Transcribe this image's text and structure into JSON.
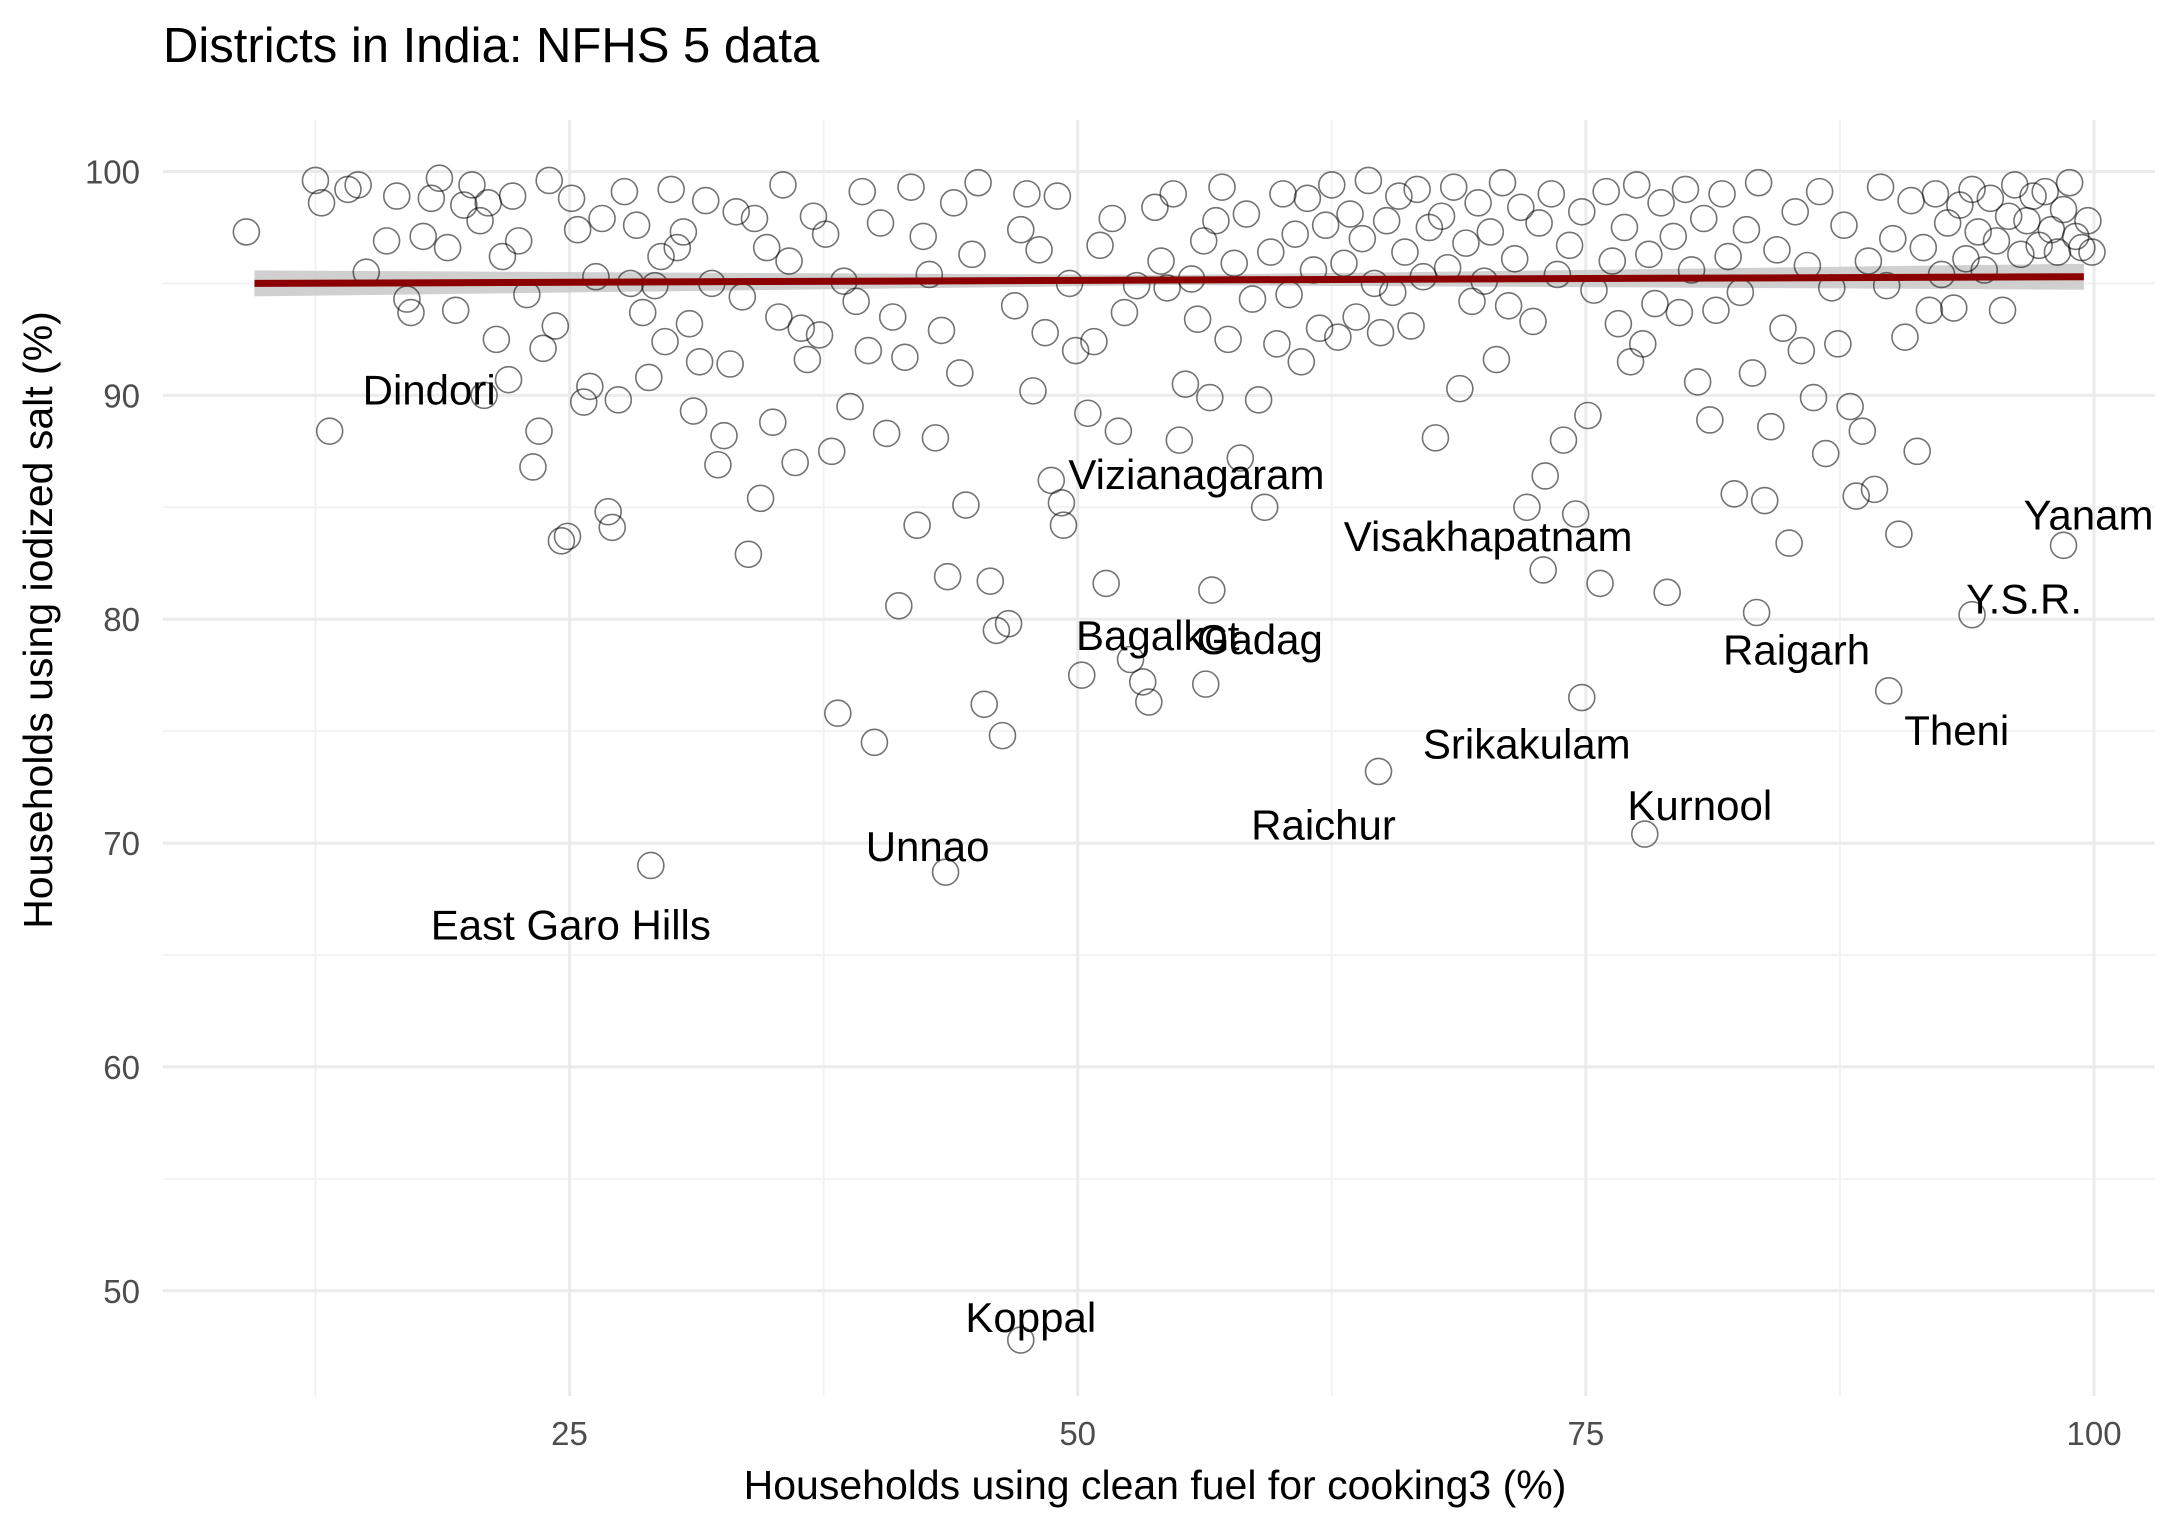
{
  "chart_data": {
    "type": "scatter",
    "title": "Districts in India: NFHS 5 data",
    "xlabel": "Households using clean fuel for cooking3 (%)",
    "ylabel": "Households using iodized salt (%)",
    "xlim": [
      5,
      103
    ],
    "ylim": [
      45.3,
      102.3
    ],
    "x_ticks": [
      25,
      50,
      75,
      100
    ],
    "y_ticks": [
      50,
      60,
      70,
      80,
      90,
      100
    ],
    "grid": true,
    "point_style": "hollow circle",
    "trend_line": {
      "type": "linear fit with confidence band",
      "color": "#8b0000",
      "band_color": "#c8c8c8",
      "points": [
        [
          9.5,
          95.0
        ],
        [
          99.5,
          95.3
        ]
      ]
    },
    "labeled_points": [
      {
        "label": "Dindori",
        "x": 20.8,
        "y": 90.0
      },
      {
        "label": "East Garo Hills",
        "x": 29.0,
        "y": 69.0
      },
      {
        "label": "Unnao",
        "x": 43.5,
        "y": 68.7
      },
      {
        "label": "Koppal",
        "x": 47.2,
        "y": 47.8
      },
      {
        "label": "Vizianagaram",
        "x": 49.2,
        "y": 85.2
      },
      {
        "label": "Bagalkot",
        "x": 56.3,
        "y": 77.1
      },
      {
        "label": "Gadag",
        "x": 56.6,
        "y": 81.3
      },
      {
        "label": "Raichur",
        "x": 64.8,
        "y": 73.2
      },
      {
        "label": "Visakhapatnam",
        "x": 72.9,
        "y": 82.2
      },
      {
        "label": "Srikakulam",
        "x": 74.8,
        "y": 76.5
      },
      {
        "label": "Kurnool",
        "x": 77.9,
        "y": 70.4
      },
      {
        "label": "Raigarh",
        "x": 83.4,
        "y": 80.3
      },
      {
        "label": "Theni",
        "x": 89.9,
        "y": 76.8
      },
      {
        "label": "Y.S.R.",
        "x": 94.0,
        "y": 80.2
      },
      {
        "label": "Yanam",
        "x": 98.5,
        "y": 83.3
      }
    ],
    "other_points": [
      [
        9.1,
        97.3
      ],
      [
        12.5,
        99.6
      ],
      [
        12.8,
        98.6
      ],
      [
        13.2,
        88.4
      ],
      [
        14.1,
        99.2
      ],
      [
        14.6,
        99.4
      ],
      [
        15.0,
        95.5
      ],
      [
        16.0,
        96.9
      ],
      [
        16.5,
        98.9
      ],
      [
        17.0,
        94.3
      ],
      [
        17.2,
        93.7
      ],
      [
        17.8,
        97.1
      ],
      [
        18.2,
        98.8
      ],
      [
        18.6,
        99.7
      ],
      [
        19.0,
        96.6
      ],
      [
        19.4,
        93.8
      ],
      [
        19.8,
        98.5
      ],
      [
        20.2,
        99.4
      ],
      [
        20.6,
        97.8
      ],
      [
        21.0,
        98.6
      ],
      [
        21.4,
        92.5
      ],
      [
        21.7,
        96.2
      ],
      [
        22.0,
        90.7
      ],
      [
        22.2,
        98.9
      ],
      [
        22.5,
        96.9
      ],
      [
        22.9,
        94.5
      ],
      [
        23.2,
        86.8
      ],
      [
        23.5,
        88.4
      ],
      [
        23.7,
        92.1
      ],
      [
        24.0,
        99.6
      ],
      [
        24.3,
        93.1
      ],
      [
        24.6,
        83.5
      ],
      [
        24.9,
        83.7
      ],
      [
        25.1,
        98.8
      ],
      [
        25.4,
        97.4
      ],
      [
        25.7,
        89.7
      ],
      [
        26.0,
        90.4
      ],
      [
        26.3,
        95.3
      ],
      [
        26.6,
        97.9
      ],
      [
        26.9,
        84.8
      ],
      [
        27.1,
        84.1
      ],
      [
        27.4,
        89.8
      ],
      [
        27.7,
        99.1
      ],
      [
        28.0,
        95.0
      ],
      [
        28.3,
        97.6
      ],
      [
        28.6,
        93.7
      ],
      [
        28.9,
        90.8
      ],
      [
        29.2,
        94.9
      ],
      [
        29.5,
        96.2
      ],
      [
        29.7,
        92.4
      ],
      [
        30.0,
        99.2
      ],
      [
        30.3,
        96.6
      ],
      [
        30.6,
        97.3
      ],
      [
        30.9,
        93.2
      ],
      [
        31.1,
        89.3
      ],
      [
        31.4,
        91.5
      ],
      [
        31.7,
        98.7
      ],
      [
        32.0,
        95.0
      ],
      [
        32.3,
        86.9
      ],
      [
        32.6,
        88.2
      ],
      [
        32.9,
        91.4
      ],
      [
        33.2,
        98.2
      ],
      [
        33.5,
        94.4
      ],
      [
        33.8,
        82.9
      ],
      [
        34.1,
        97.9
      ],
      [
        34.4,
        85.4
      ],
      [
        34.7,
        96.6
      ],
      [
        35.0,
        88.8
      ],
      [
        35.3,
        93.5
      ],
      [
        35.5,
        99.4
      ],
      [
        35.8,
        96.0
      ],
      [
        36.1,
        87.0
      ],
      [
        36.4,
        93.0
      ],
      [
        36.7,
        91.6
      ],
      [
        37.0,
        98.0
      ],
      [
        37.3,
        92.7
      ],
      [
        37.6,
        97.2
      ],
      [
        37.9,
        87.5
      ],
      [
        38.2,
        75.8
      ],
      [
        38.5,
        95.1
      ],
      [
        38.8,
        89.5
      ],
      [
        39.1,
        94.2
      ],
      [
        39.4,
        99.1
      ],
      [
        39.7,
        92.0
      ],
      [
        40.0,
        74.5
      ],
      [
        40.3,
        97.7
      ],
      [
        40.6,
        88.3
      ],
      [
        40.9,
        93.5
      ],
      [
        41.2,
        80.6
      ],
      [
        41.5,
        91.7
      ],
      [
        41.8,
        99.3
      ],
      [
        42.1,
        84.2
      ],
      [
        42.4,
        97.1
      ],
      [
        42.7,
        95.4
      ],
      [
        43.0,
        88.1
      ],
      [
        43.3,
        92.9
      ],
      [
        43.6,
        81.9
      ],
      [
        43.9,
        98.6
      ],
      [
        44.2,
        91.0
      ],
      [
        44.5,
        85.1
      ],
      [
        44.8,
        96.3
      ],
      [
        45.1,
        99.5
      ],
      [
        45.4,
        76.2
      ],
      [
        45.7,
        81.7
      ],
      [
        46.0,
        79.5
      ],
      [
        46.3,
        74.8
      ],
      [
        46.6,
        79.8
      ],
      [
        46.9,
        94.0
      ],
      [
        47.2,
        97.4
      ],
      [
        47.5,
        99.0
      ],
      [
        47.8,
        90.2
      ],
      [
        48.1,
        96.5
      ],
      [
        48.4,
        92.8
      ],
      [
        48.7,
        86.2
      ],
      [
        49.0,
        98.9
      ],
      [
        49.3,
        84.2
      ],
      [
        49.6,
        95.0
      ],
      [
        49.9,
        92.0
      ],
      [
        50.2,
        77.5
      ],
      [
        50.5,
        89.2
      ],
      [
        50.8,
        92.4
      ],
      [
        51.1,
        96.7
      ],
      [
        51.4,
        81.6
      ],
      [
        51.7,
        97.9
      ],
      [
        52.0,
        88.4
      ],
      [
        52.3,
        93.7
      ],
      [
        52.6,
        78.2
      ],
      [
        52.9,
        94.9
      ],
      [
        53.2,
        77.2
      ],
      [
        53.5,
        76.3
      ],
      [
        53.8,
        98.4
      ],
      [
        54.1,
        96.0
      ],
      [
        54.4,
        94.8
      ],
      [
        54.7,
        99.0
      ],
      [
        55.0,
        88.0
      ],
      [
        55.3,
        90.5
      ],
      [
        55.6,
        95.2
      ],
      [
        55.9,
        93.4
      ],
      [
        56.2,
        96.9
      ],
      [
        56.5,
        89.9
      ],
      [
        56.8,
        97.8
      ],
      [
        57.1,
        99.3
      ],
      [
        57.4,
        92.5
      ],
      [
        57.7,
        95.9
      ],
      [
        58.0,
        87.2
      ],
      [
        58.3,
        98.1
      ],
      [
        58.6,
        94.3
      ],
      [
        58.9,
        89.8
      ],
      [
        59.2,
        85.0
      ],
      [
        59.5,
        96.4
      ],
      [
        59.8,
        92.3
      ],
      [
        60.1,
        99.0
      ],
      [
        60.4,
        94.5
      ],
      [
        60.7,
        97.2
      ],
      [
        61.0,
        91.5
      ],
      [
        61.3,
        98.8
      ],
      [
        61.6,
        95.6
      ],
      [
        61.9,
        93.0
      ],
      [
        62.2,
        97.6
      ],
      [
        62.5,
        99.4
      ],
      [
        62.8,
        92.6
      ],
      [
        63.1,
        95.9
      ],
      [
        63.4,
        98.1
      ],
      [
        63.7,
        93.5
      ],
      [
        64.0,
        97.0
      ],
      [
        64.3,
        99.6
      ],
      [
        64.6,
        95.0
      ],
      [
        64.9,
        92.8
      ],
      [
        65.2,
        97.8
      ],
      [
        65.5,
        94.6
      ],
      [
        65.8,
        98.9
      ],
      [
        66.1,
        96.4
      ],
      [
        66.4,
        93.1
      ],
      [
        66.7,
        99.2
      ],
      [
        67.0,
        95.3
      ],
      [
        67.3,
        97.5
      ],
      [
        67.6,
        88.1
      ],
      [
        67.9,
        98.0
      ],
      [
        68.2,
        95.7
      ],
      [
        68.5,
        99.3
      ],
      [
        68.8,
        90.3
      ],
      [
        69.1,
        96.8
      ],
      [
        69.4,
        94.2
      ],
      [
        69.7,
        98.6
      ],
      [
        70.0,
        95.1
      ],
      [
        70.3,
        97.3
      ],
      [
        70.6,
        91.6
      ],
      [
        70.9,
        99.5
      ],
      [
        71.2,
        94.0
      ],
      [
        71.5,
        96.1
      ],
      [
        71.8,
        98.4
      ],
      [
        72.1,
        85.0
      ],
      [
        72.4,
        93.3
      ],
      [
        72.7,
        97.7
      ],
      [
        73.0,
        86.4
      ],
      [
        73.3,
        99.0
      ],
      [
        73.6,
        95.4
      ],
      [
        73.9,
        88.0
      ],
      [
        74.2,
        96.7
      ],
      [
        74.5,
        84.7
      ],
      [
        74.8,
        98.2
      ],
      [
        75.1,
        89.1
      ],
      [
        75.4,
        94.7
      ],
      [
        75.7,
        81.6
      ],
      [
        76.0,
        99.1
      ],
      [
        76.3,
        96.0
      ],
      [
        76.6,
        93.2
      ],
      [
        76.9,
        97.5
      ],
      [
        77.2,
        91.5
      ],
      [
        77.5,
        99.4
      ],
      [
        77.8,
        92.3
      ],
      [
        78.1,
        96.3
      ],
      [
        78.4,
        94.1
      ],
      [
        78.7,
        98.6
      ],
      [
        79.0,
        81.2
      ],
      [
        79.3,
        97.1
      ],
      [
        79.6,
        93.7
      ],
      [
        79.9,
        99.2
      ],
      [
        80.2,
        95.6
      ],
      [
        80.5,
        90.6
      ],
      [
        80.8,
        97.9
      ],
      [
        81.1,
        88.9
      ],
      [
        81.4,
        93.8
      ],
      [
        81.7,
        99.0
      ],
      [
        82.0,
        96.2
      ],
      [
        82.3,
        85.6
      ],
      [
        82.6,
        94.6
      ],
      [
        82.9,
        97.4
      ],
      [
        83.2,
        91.0
      ],
      [
        83.5,
        99.5
      ],
      [
        83.8,
        85.3
      ],
      [
        84.1,
        88.6
      ],
      [
        84.4,
        96.5
      ],
      [
        84.7,
        93.0
      ],
      [
        85.0,
        83.4
      ],
      [
        85.3,
        98.2
      ],
      [
        85.6,
        92.0
      ],
      [
        85.9,
        95.8
      ],
      [
        86.2,
        89.9
      ],
      [
        86.5,
        99.1
      ],
      [
        86.8,
        87.4
      ],
      [
        87.1,
        94.8
      ],
      [
        87.4,
        92.3
      ],
      [
        87.7,
        97.6
      ],
      [
        88.0,
        89.5
      ],
      [
        88.3,
        85.5
      ],
      [
        88.6,
        88.4
      ],
      [
        88.9,
        96.0
      ],
      [
        89.2,
        85.8
      ],
      [
        89.5,
        99.3
      ],
      [
        89.8,
        94.9
      ],
      [
        90.1,
        97.0
      ],
      [
        90.4,
        83.8
      ],
      [
        90.7,
        92.6
      ],
      [
        91.0,
        98.7
      ],
      [
        91.3,
        87.5
      ],
      [
        91.6,
        96.6
      ],
      [
        91.9,
        93.8
      ],
      [
        92.2,
        99.0
      ],
      [
        92.5,
        95.4
      ],
      [
        92.8,
        97.7
      ],
      [
        93.1,
        93.9
      ],
      [
        93.4,
        98.5
      ],
      [
        93.7,
        96.1
      ],
      [
        94.0,
        99.2
      ],
      [
        94.3,
        97.3
      ],
      [
        94.6,
        95.6
      ],
      [
        94.9,
        98.8
      ],
      [
        95.2,
        96.9
      ],
      [
        95.5,
        93.8
      ],
      [
        95.8,
        98.0
      ],
      [
        96.1,
        99.4
      ],
      [
        96.4,
        96.3
      ],
      [
        96.7,
        97.8
      ],
      [
        97.0,
        98.9
      ],
      [
        97.3,
        96.7
      ],
      [
        97.6,
        99.1
      ],
      [
        97.9,
        97.4
      ],
      [
        98.2,
        96.4
      ],
      [
        98.5,
        98.3
      ],
      [
        98.8,
        99.5
      ],
      [
        99.1,
        97.1
      ],
      [
        99.4,
        96.6
      ],
      [
        99.7,
        97.8
      ],
      [
        99.9,
        96.4
      ]
    ]
  }
}
